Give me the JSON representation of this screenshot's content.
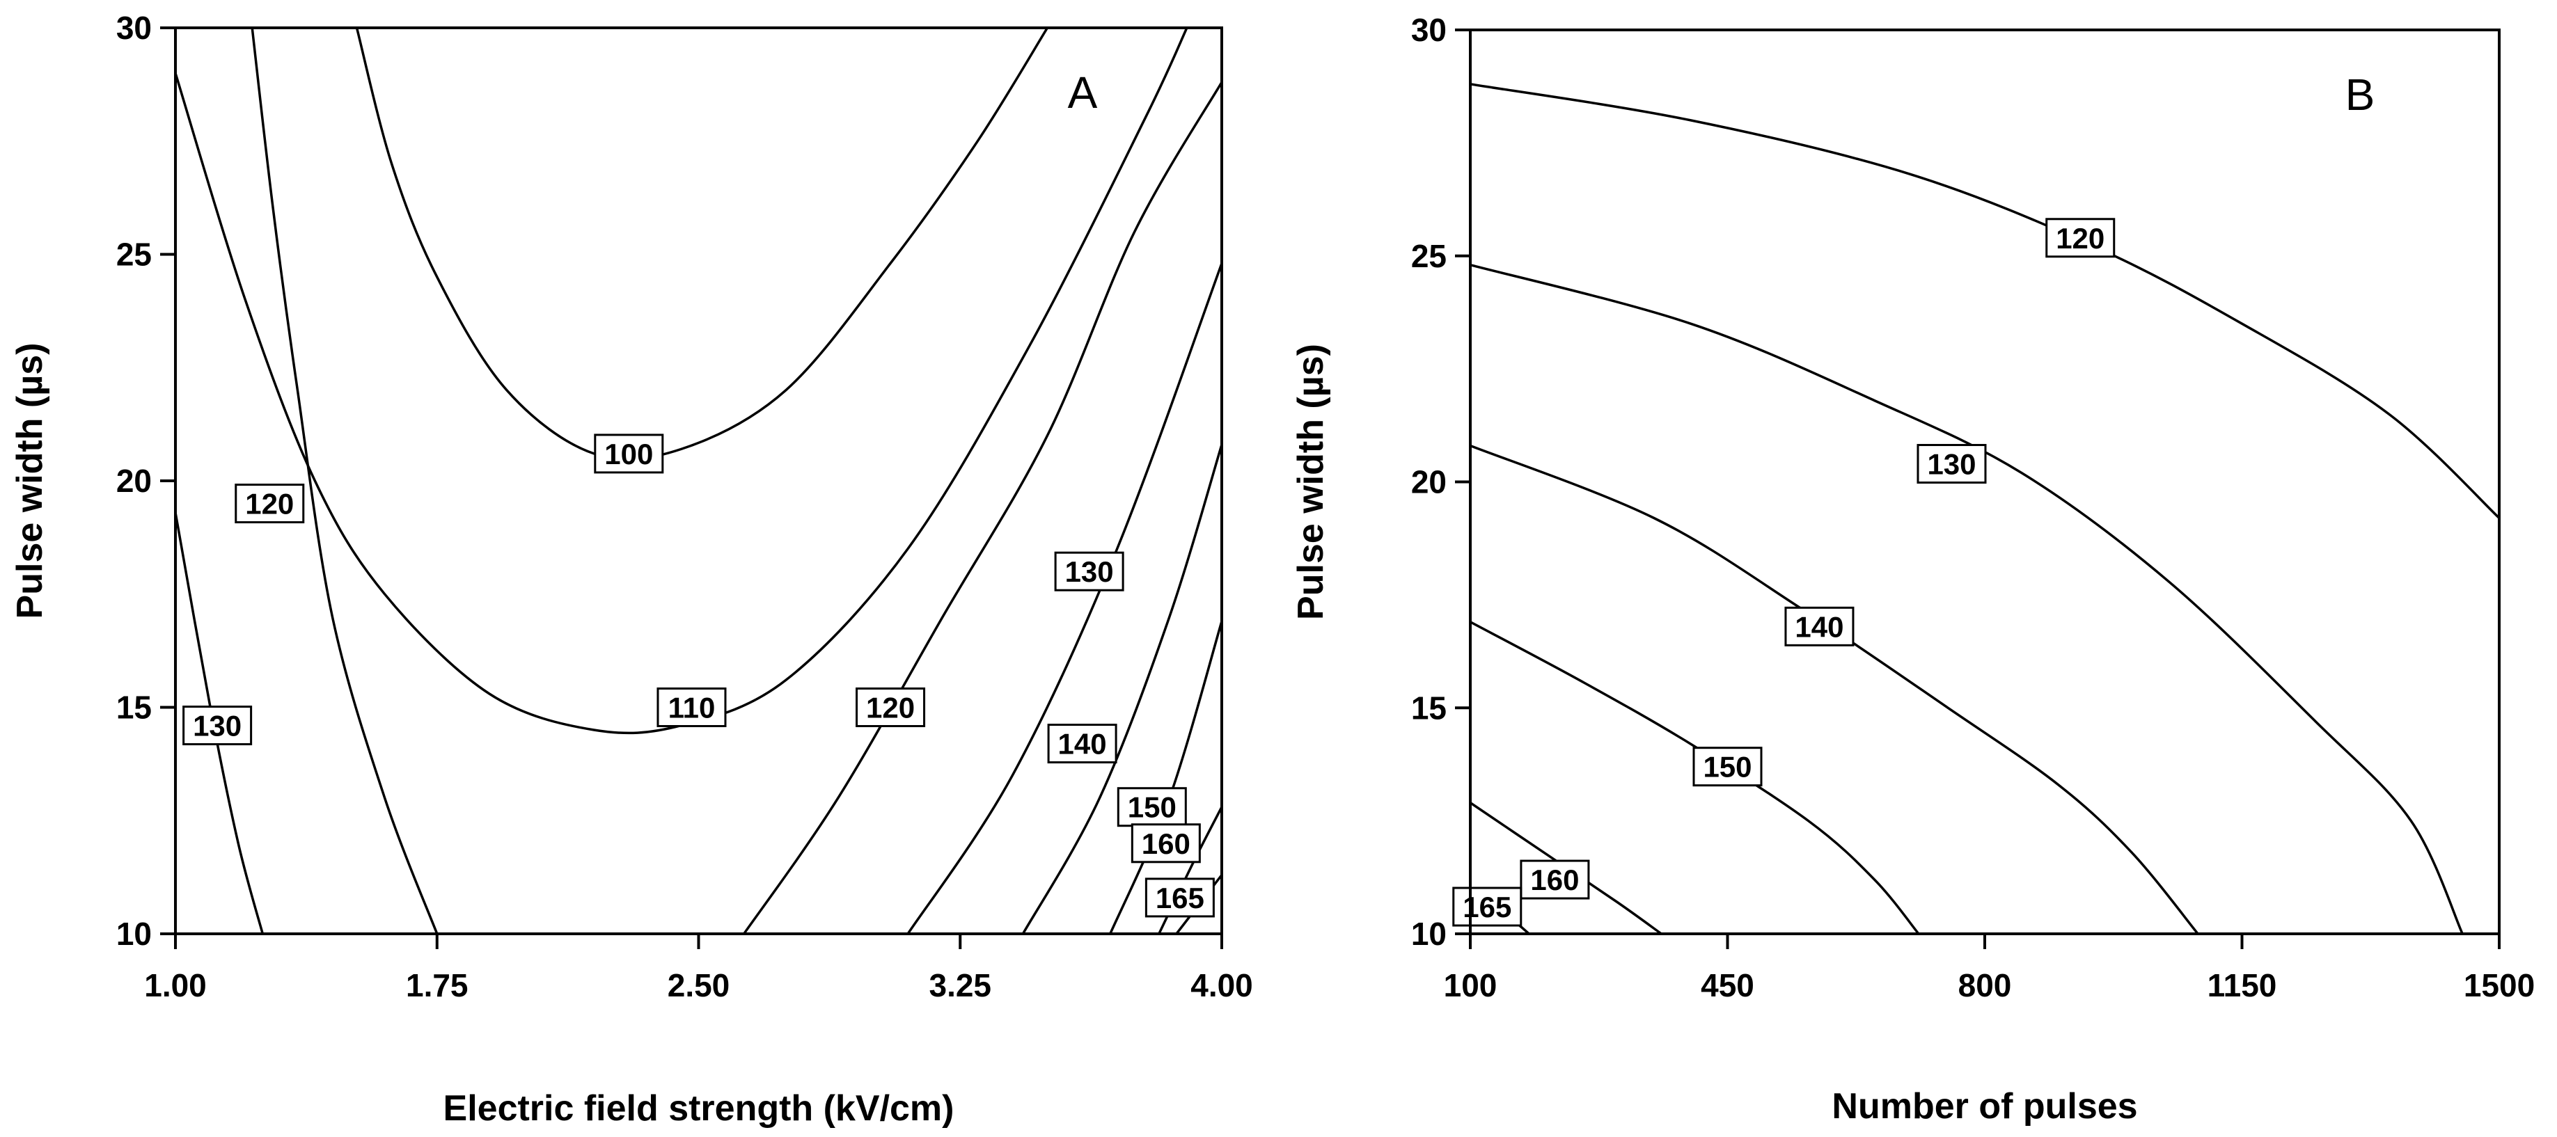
{
  "chart_data": [
    {
      "type": "contour",
      "panel": "A",
      "xlabel": "Electric field strength (kV/cm)",
      "ylabel": "Pulse width (µs)",
      "xlim": [
        1.0,
        4.0
      ],
      "ylim": [
        10,
        30
      ],
      "xticks": [
        "1.00",
        "1.75",
        "2.50",
        "3.25",
        "4.00"
      ],
      "yticks": [
        "10",
        "15",
        "20",
        "25",
        "30"
      ],
      "contours": [
        {
          "level": "100",
          "points": [
            [
              1.52,
              30
            ],
            [
              1.62,
              27
            ],
            [
              1.75,
              24.5
            ],
            [
              1.95,
              22
            ],
            [
              2.2,
              20.6
            ],
            [
              2.45,
              20.7
            ],
            [
              2.75,
              22
            ],
            [
              3.05,
              24.8
            ],
            [
              3.3,
              27.5
            ],
            [
              3.5,
              30
            ]
          ],
          "label_at": [
            2.3,
            20.6
          ]
        },
        {
          "level": "110",
          "points": [
            [
              1.0,
              29
            ],
            [
              1.2,
              24
            ],
            [
              1.4,
              20
            ],
            [
              1.6,
              17.5
            ],
            [
              1.9,
              15.3
            ],
            [
              2.2,
              14.5
            ],
            [
              2.45,
              14.6
            ],
            [
              2.75,
              15.6
            ],
            [
              3.1,
              18.5
            ],
            [
              3.45,
              23
            ],
            [
              3.78,
              28
            ],
            [
              3.9,
              30
            ]
          ],
          "label_at": [
            2.48,
            15.0
          ]
        },
        {
          "level": "120",
          "points": [
            [
              1.22,
              30
            ],
            [
              1.28,
              26
            ],
            [
              1.35,
              22
            ],
            [
              1.45,
              17
            ],
            [
              1.6,
              13
            ],
            [
              1.75,
              10
            ]
          ],
          "label_at": [
            1.27,
            19.5
          ]
        },
        {
          "level": "120",
          "points": [
            [
              2.63,
              10
            ],
            [
              2.9,
              13
            ],
            [
              3.2,
              17
            ],
            [
              3.5,
              21
            ],
            [
              3.75,
              25.5
            ],
            [
              4.0,
              28.8
            ]
          ],
          "label_at": [
            3.05,
            15.0
          ]
        },
        {
          "level": "130",
          "points": [
            [
              1.0,
              19.3
            ],
            [
              1.1,
              15
            ],
            [
              1.18,
              12
            ],
            [
              1.25,
              10
            ]
          ],
          "label_at": [
            1.12,
            14.6
          ]
        },
        {
          "level": "130",
          "points": [
            [
              3.1,
              10
            ],
            [
              3.4,
              13.5
            ],
            [
              3.7,
              18.5
            ],
            [
              4.0,
              24.8
            ]
          ],
          "label_at": [
            3.62,
            18.0
          ]
        },
        {
          "level": "140",
          "points": [
            [
              3.43,
              10
            ],
            [
              3.65,
              13
            ],
            [
              3.85,
              17
            ],
            [
              4.0,
              20.8
            ]
          ],
          "label_at": [
            3.6,
            14.2
          ]
        },
        {
          "level": "150",
          "points": [
            [
              3.68,
              10
            ],
            [
              3.85,
              13
            ],
            [
              4.0,
              16.9
            ]
          ],
          "label_at": [
            3.8,
            12.8
          ]
        },
        {
          "level": "160",
          "points": [
            [
              3.82,
              10
            ],
            [
              3.92,
              11.6
            ],
            [
              4.0,
              12.8
            ]
          ],
          "label_at": [
            3.84,
            12.0
          ]
        },
        {
          "level": "165",
          "points": [
            [
              3.87,
              10
            ],
            [
              3.95,
              10.8
            ],
            [
              4.0,
              11.3
            ]
          ],
          "label_at": [
            3.88,
            10.8
          ]
        }
      ]
    },
    {
      "type": "contour",
      "panel": "B",
      "xlabel": "Number of pulses",
      "ylabel": "Pulse width (µs)",
      "xlim": [
        100,
        1500
      ],
      "ylim": [
        10,
        30
      ],
      "xticks": [
        "100",
        "450",
        "800",
        "1150",
        "1500"
      ],
      "yticks": [
        "10",
        "15",
        "20",
        "25",
        "30"
      ],
      "contours": [
        {
          "level": "120",
          "points": [
            [
              100,
              28.8
            ],
            [
              400,
              28.0
            ],
            [
              700,
              26.8
            ],
            [
              950,
              25.2
            ],
            [
              1150,
              23.5
            ],
            [
              1350,
              21.5
            ],
            [
              1500,
              19.2
            ]
          ],
          "label_at": [
            930,
            25.4
          ]
        },
        {
          "level": "130",
          "points": [
            [
              100,
              24.8
            ],
            [
              400,
              23.5
            ],
            [
              650,
              21.8
            ],
            [
              850,
              20.2
            ],
            [
              1050,
              17.8
            ],
            [
              1250,
              14.7
            ],
            [
              1380,
              12.5
            ],
            [
              1450,
              10
            ]
          ],
          "label_at": [
            755,
            20.4
          ]
        },
        {
          "level": "140",
          "points": [
            [
              100,
              20.8
            ],
            [
              350,
              19.2
            ],
            [
              550,
              17.2
            ],
            [
              750,
              15.0
            ],
            [
              900,
              13.3
            ],
            [
              1000,
              11.8
            ],
            [
              1090,
              10
            ]
          ],
          "label_at": [
            575,
            16.8
          ]
        },
        {
          "level": "150",
          "points": [
            [
              100,
              16.9
            ],
            [
              250,
              15.6
            ],
            [
              400,
              14.2
            ],
            [
              560,
              12.5
            ],
            [
              650,
              11.2
            ],
            [
              710,
              10
            ]
          ],
          "label_at": [
            450,
            13.7
          ]
        },
        {
          "level": "160",
          "points": [
            [
              100,
              12.9
            ],
            [
              200,
              11.8
            ],
            [
              300,
              10.7
            ],
            [
              360,
              10
            ]
          ],
          "label_at": [
            215,
            11.2
          ]
        },
        {
          "level": "165",
          "points": [
            [
              100,
              10.9
            ],
            [
              150,
              10.4
            ],
            [
              180,
              10
            ]
          ],
          "label_at": [
            123,
            10.6
          ]
        }
      ]
    }
  ]
}
